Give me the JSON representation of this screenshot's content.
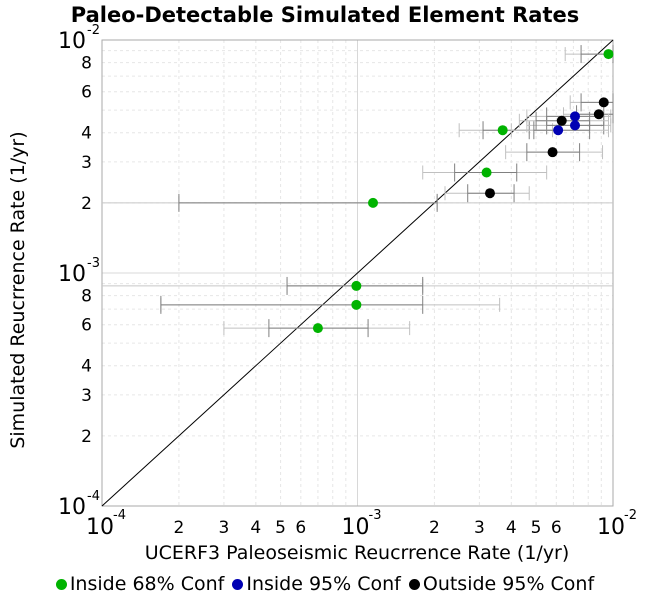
{
  "chart_data": {
    "type": "scatter",
    "title": "Paleo-Detectable Simulated Element Rates",
    "xlabel": "UCERF3 Paleoseismic Reucrrence Rate (1/yr)",
    "ylabel": "Simulated Reucrrence Rate (1/yr)",
    "x_scale": "log",
    "y_scale": "log",
    "xlim": [
      0.0001,
      0.01
    ],
    "ylim": [
      0.0001,
      0.01
    ],
    "grid": true,
    "legend_position": "bottom",
    "ticks": {
      "major": [
        {
          "value": 0.0001,
          "base": "10",
          "exp": "-4"
        },
        {
          "value": 0.001,
          "base": "10",
          "exp": "-3"
        },
        {
          "value": 0.01,
          "base": "10",
          "exp": "-2"
        }
      ],
      "x_minor": [
        {
          "value": 0.0002,
          "label": "2"
        },
        {
          "value": 0.0003,
          "label": "3"
        },
        {
          "value": 0.0004,
          "label": "4"
        },
        {
          "value": 0.0005,
          "label": "5"
        },
        {
          "value": 0.0006,
          "label": "6"
        },
        {
          "value": 0.002,
          "label": "2"
        },
        {
          "value": 0.003,
          "label": "3"
        },
        {
          "value": 0.004,
          "label": "4"
        },
        {
          "value": 0.005,
          "label": "5"
        },
        {
          "value": 0.006,
          "label": "6"
        }
      ],
      "y_minor": [
        {
          "value": 0.0002,
          "label": "2"
        },
        {
          "value": 0.0003,
          "label": "3"
        },
        {
          "value": 0.0004,
          "label": "4"
        },
        {
          "value": 0.0006,
          "label": "6"
        },
        {
          "value": 0.0008,
          "label": "8"
        },
        {
          "value": 0.002,
          "label": "2"
        },
        {
          "value": 0.003,
          "label": "3"
        },
        {
          "value": 0.004,
          "label": "4"
        },
        {
          "value": 0.006,
          "label": "6"
        },
        {
          "value": 0.008,
          "label": "8"
        }
      ]
    },
    "reference_line": {
      "from": [
        0.0001,
        0.0001
      ],
      "to": [
        0.01,
        0.01
      ],
      "color": "#000000"
    },
    "series": [
      {
        "name": "Inside 68% Conf",
        "color": "#00b300",
        "points": [
          {
            "x": 0.0096,
            "y": 0.0087,
            "x_err": [
              0.0075,
              0.01
            ],
            "x_err_outer": [
              0.0065,
              0.01
            ]
          },
          {
            "x": 0.0037,
            "y": 0.0041,
            "x_err": [
              0.0031,
              0.0047
            ],
            "x_err_outer": [
              0.0025,
              0.0058
            ]
          },
          {
            "x": 0.0032,
            "y": 0.0027,
            "x_err": [
              0.0024,
              0.0042
            ],
            "x_err_outer": [
              0.0018,
              0.0055
            ]
          },
          {
            "x": 0.00115,
            "y": 0.002,
            "x_err": [
              0.0002,
              0.00205
            ],
            "x_err_outer": [
              0.0002,
              0.00205
            ],
            "y_line": [
              0.0001,
              0.01
            ]
          },
          {
            "x": 0.00099,
            "y": 0.00088,
            "x_err": [
              0.00053,
              0.0018
            ],
            "x_err_outer": [
              0.00053,
              0.0018
            ],
            "y_line": [
              0.0001,
              0.01
            ]
          },
          {
            "x": 0.00099,
            "y": 0.00073,
            "x_err": [
              0.00017,
              0.0018
            ],
            "x_err_outer": [
              0.00017,
              0.0036
            ]
          },
          {
            "x": 0.0007,
            "y": 0.00058,
            "x_err": [
              0.00045,
              0.0011
            ],
            "x_err_outer": [
              0.0003,
              0.0016
            ]
          }
        ]
      },
      {
        "name": "Inside 95% Conf",
        "color": "#0000b3",
        "points": [
          {
            "x": 0.0071,
            "y": 0.0047,
            "x_err": [
              0.0055,
              0.0092
            ],
            "x_err_outer": [
              0.0046,
              0.0098
            ]
          },
          {
            "x": 0.0071,
            "y": 0.0043,
            "x_err": [
              0.0055,
              0.0092
            ],
            "x_err_outer": [
              0.0046,
              0.0098
            ]
          },
          {
            "x": 0.0061,
            "y": 0.0041,
            "x_err": [
              0.0049,
              0.0081
            ],
            "x_err_outer": [
              0.004,
              0.0096
            ]
          }
        ]
      },
      {
        "name": "Outside 95% Conf",
        "color": "#000000",
        "points": [
          {
            "x": 0.0092,
            "y": 0.0054,
            "x_err": [
              0.0075,
              0.01
            ],
            "x_err_outer": [
              0.0068,
              0.01
            ]
          },
          {
            "x": 0.0088,
            "y": 0.0048,
            "x_err": [
              0.0072,
              0.01
            ],
            "x_err_outer": [
              0.0064,
              0.01
            ]
          },
          {
            "x": 0.0063,
            "y": 0.0045,
            "x_err": [
              0.005,
              0.0081
            ],
            "x_err_outer": [
              0.0043,
              0.0096
            ]
          },
          {
            "x": 0.0058,
            "y": 0.0033,
            "x_err": [
              0.0046,
              0.0074
            ],
            "x_err_outer": [
              0.0038,
              0.0091
            ]
          },
          {
            "x": 0.0033,
            "y": 0.0022,
            "x_err": [
              0.0027,
              0.0041
            ],
            "x_err_outer": [
              0.0022,
              0.0047
            ]
          }
        ]
      }
    ]
  }
}
